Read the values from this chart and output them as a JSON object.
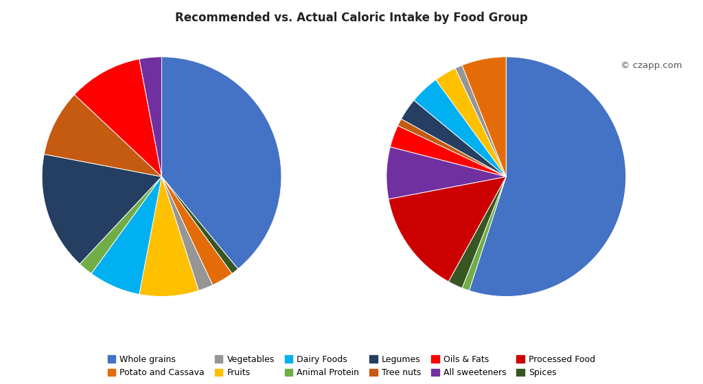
{
  "title": "Recommended vs. Actual Caloric Intake by Food Group",
  "watermark": "© czapp.com",
  "categories": [
    "Whole grains",
    "Potato and Cassava",
    "Vegetables",
    "Fruits",
    "Dairy Foods",
    "Animal Protein",
    "Legumes",
    "Tree nuts",
    "Oils & Fats",
    "All sweeteners",
    "Processed Food",
    "Spices"
  ],
  "cat_colors": {
    "Whole grains": "#4472C4",
    "Potato and Cassava": "#E36C09",
    "Vegetables": "#969696",
    "Fruits": "#FFC000",
    "Dairy Foods": "#00B0F0",
    "Animal Protein": "#70AD47",
    "Legumes": "#243F61",
    "Tree nuts": "#C55A11",
    "Oils & Fats": "#FF0000",
    "All sweeteners": "#7030A0",
    "Processed Food": "#CC0000",
    "Spices": "#375623"
  },
  "pie1_labels": [
    "Whole grains",
    "Spices",
    "Potato and Cassava",
    "Vegetables",
    "Fruits",
    "Dairy Foods",
    "Animal Protein",
    "Legumes",
    "Tree nuts",
    "Oils & Fats",
    "All sweeteners"
  ],
  "pie1_sizes": [
    39,
    1,
    3,
    2,
    8,
    7,
    2,
    16,
    9,
    10,
    3
  ],
  "pie2_labels": [
    "Whole grains",
    "Animal Protein",
    "Spices",
    "Processed Food",
    "All sweeteners",
    "Oils & Fats",
    "Tree nuts",
    "Legumes",
    "Dairy Foods",
    "Fruits",
    "Vegetables",
    "Potato and Cassava"
  ],
  "pie2_sizes": [
    55,
    1,
    2,
    14,
    7,
    3,
    1,
    3,
    4,
    3,
    1,
    6
  ],
  "background_color": "#FFFFFF",
  "title_fontsize": 12,
  "legend_fontsize": 9
}
